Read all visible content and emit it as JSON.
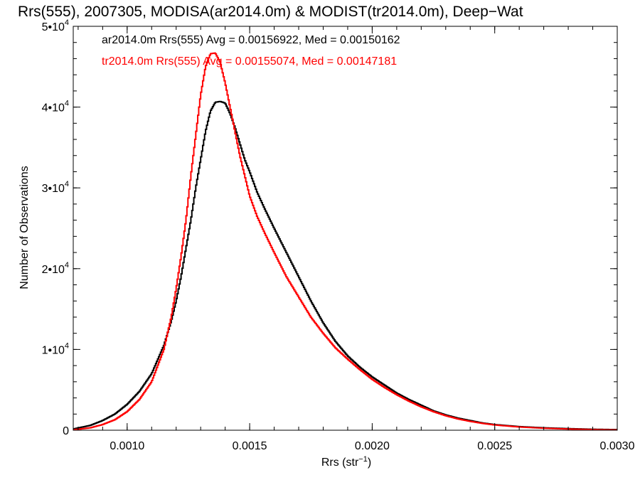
{
  "chart_data": {
    "type": "line",
    "title": "Rrs(555), 2007305, MODISA(ar2014.0m) & MODIST(tr2014.0m), Deep−Wat",
    "xlabel": "Rrs (str",
    "xlabel_sup": "−1",
    "xlabel_suffix": ")",
    "ylabel": "Number of Observations",
    "xlim": [
      0.00078,
      0.003
    ],
    "ylim": [
      0,
      50000
    ],
    "grid": false,
    "x_ticks": [
      {
        "value": 0.001,
        "label": "0.0010"
      },
      {
        "value": 0.0015,
        "label": "0.0015"
      },
      {
        "value": 0.002,
        "label": "0.0020"
      },
      {
        "value": 0.0025,
        "label": "0.0025"
      },
      {
        "value": 0.003,
        "label": "0.0030"
      }
    ],
    "y_ticks": [
      {
        "value": 0,
        "base": "0",
        "sup": ""
      },
      {
        "value": 10000,
        "base": "1•10",
        "sup": "4"
      },
      {
        "value": 20000,
        "base": "2•10",
        "sup": "4"
      },
      {
        "value": 30000,
        "base": "3•10",
        "sup": "4"
      },
      {
        "value": 40000,
        "base": "4•10",
        "sup": "4"
      },
      {
        "value": 50000,
        "base": "5•10",
        "sup": "4"
      }
    ],
    "legend_placement": "top-left",
    "series": [
      {
        "name": "ar2014.0m Rrs(555) Avg = 0.00156922, Med = 0.00150162",
        "color": "#000000",
        "x": [
          0.00078,
          0.00085,
          0.0009,
          0.00095,
          0.001,
          0.00105,
          0.0011,
          0.00115,
          0.00118,
          0.0012,
          0.00122,
          0.00124,
          0.00126,
          0.00128,
          0.0013,
          0.00132,
          0.00134,
          0.00136,
          0.00138,
          0.0014,
          0.00142,
          0.00144,
          0.00146,
          0.00148,
          0.0015,
          0.00153,
          0.00156,
          0.0016,
          0.00165,
          0.0017,
          0.00175,
          0.0018,
          0.00185,
          0.0019,
          0.00195,
          0.002,
          0.00205,
          0.0021,
          0.00215,
          0.0022,
          0.00225,
          0.0023,
          0.00235,
          0.0024,
          0.00245,
          0.0025,
          0.0026,
          0.0027,
          0.0028,
          0.0029,
          0.003
        ],
        "values": [
          150,
          600,
          1200,
          2000,
          3200,
          4800,
          7000,
          10500,
          13500,
          16000,
          19000,
          22500,
          26000,
          30000,
          33500,
          37000,
          39500,
          40600,
          40700,
          40500,
          39200,
          37500,
          35500,
          33500,
          32000,
          29500,
          27500,
          25000,
          22000,
          19000,
          16000,
          13300,
          11000,
          9200,
          7800,
          6600,
          5600,
          4600,
          3800,
          3100,
          2400,
          1900,
          1500,
          1200,
          900,
          700,
          450,
          300,
          200,
          120,
          80
        ]
      },
      {
        "name": "tr2014.0m Rrs(555) Avg = 0.00155074, Med = 0.00147181",
        "color": "#ff0000",
        "x": [
          0.00078,
          0.00085,
          0.0009,
          0.00095,
          0.001,
          0.00105,
          0.0011,
          0.00115,
          0.00118,
          0.0012,
          0.00122,
          0.00124,
          0.00126,
          0.00128,
          0.0013,
          0.00132,
          0.00134,
          0.00136,
          0.00138,
          0.0014,
          0.00142,
          0.00144,
          0.00146,
          0.00148,
          0.0015,
          0.00153,
          0.00156,
          0.0016,
          0.00165,
          0.0017,
          0.00175,
          0.0018,
          0.00185,
          0.0019,
          0.00195,
          0.002,
          0.00205,
          0.0021,
          0.00215,
          0.0022,
          0.00225,
          0.0023,
          0.00235,
          0.0024,
          0.00245,
          0.0025,
          0.0026,
          0.0027,
          0.0028,
          0.0029,
          0.003
        ],
        "values": [
          50,
          300,
          700,
          1300,
          2300,
          3800,
          6000,
          10000,
          14000,
          17500,
          21500,
          26000,
          31500,
          36500,
          41500,
          45000,
          46600,
          46700,
          45500,
          43000,
          40000,
          37000,
          34000,
          31500,
          29000,
          26500,
          24500,
          22000,
          19000,
          16500,
          14000,
          12000,
          10200,
          8800,
          7500,
          6300,
          5300,
          4400,
          3600,
          2900,
          2300,
          1800,
          1400,
          1100,
          850,
          650,
          400,
          250,
          150,
          80,
          40
        ]
      }
    ]
  }
}
